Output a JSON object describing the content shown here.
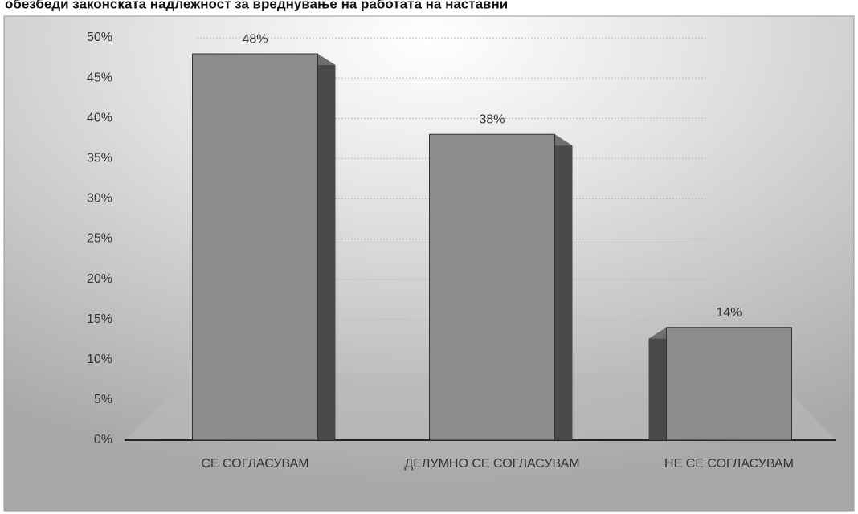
{
  "header_text": "обезбеди законската надлежност за вреднување на работата на наставни",
  "chart_data": {
    "type": "bar",
    "categories": [
      "СЕ СОГЛАСУВАМ",
      "ДЕЛУМНО СЕ СОГЛАСУВАМ",
      "НЕ СЕ СОГЛАСУВАМ"
    ],
    "values": [
      48,
      38,
      14
    ],
    "value_labels": [
      "48%",
      "38%",
      "14%"
    ],
    "color": "#8c8c8c",
    "ylim": [
      0,
      50
    ],
    "yticks": [
      {
        "value": 0,
        "label": "0%"
      },
      {
        "value": 5,
        "label": "5%"
      },
      {
        "value": 10,
        "label": "10%"
      },
      {
        "value": 15,
        "label": "15%"
      },
      {
        "value": 20,
        "label": "20%"
      },
      {
        "value": 25,
        "label": "25%"
      },
      {
        "value": 30,
        "label": "30%"
      },
      {
        "value": 35,
        "label": "35%"
      },
      {
        "value": 40,
        "label": "40%"
      },
      {
        "value": 45,
        "label": "45%"
      },
      {
        "value": 50,
        "label": "50%"
      }
    ],
    "grid": true
  }
}
